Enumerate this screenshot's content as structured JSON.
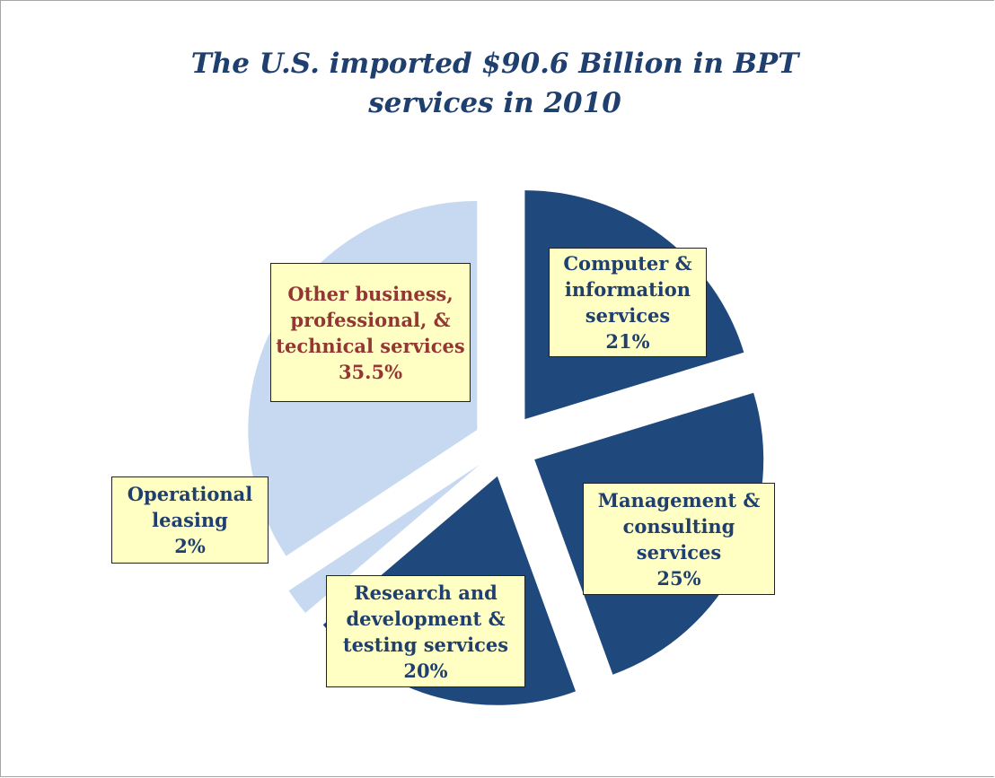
{
  "chart_data": {
    "type": "pie",
    "title": "The U.S. imported $90.6 Billion in BPT services in 2010",
    "categories": [
      "Computer & information services",
      "Management & consulting services",
      "Research and development & testing services",
      "Operational leasing",
      "Other business, professional, & technical services"
    ],
    "values": [
      21,
      25,
      20,
      2,
      35.5
    ],
    "value_labels": [
      "21%",
      "25%",
      "20%",
      "2%",
      "35.5%"
    ],
    "colors": [
      "#1f497d",
      "#1f497d",
      "#1f497d",
      "#c6d9f1",
      "#c6d9f1"
    ],
    "label_colors": [
      "#1f3f6e",
      "#1f3f6e",
      "#1f3f6e",
      "#1f3f6e",
      "#943634"
    ]
  }
}
